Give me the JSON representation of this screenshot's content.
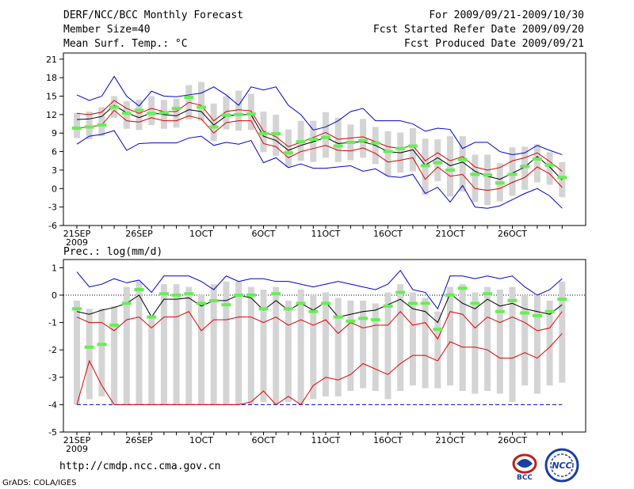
{
  "header": {
    "title": "DERF/NCC/BCC Monthly Forecast",
    "member_size": "Member Size=40",
    "variable": "Mean Surf. Temp.: °C",
    "period": "For 2009/09/21-2009/10/30",
    "started": "Fcst Started Refer Date 2009/09/20",
    "produced": "Fcst Produced Date 2009/09/21"
  },
  "footer": {
    "url": "http://cmdp.ncc.cma.gov.cn",
    "grads": "GrADS: COLA/IGES",
    "logo_left": "BCC",
    "logo_right": "NCC"
  },
  "colors": {
    "max_min": "#0000cc",
    "percentile": "#dd0000",
    "mean": "#000000",
    "median_mark": "#66ee55",
    "box": "#d4d4d4"
  },
  "chart_data": [
    {
      "type": "box-ensemble",
      "title": "Mean Surf. Temp.: °C",
      "x_labels": [
        "21SEP\n2009",
        "26SEP",
        "1OCT",
        "6OCT",
        "11OCT",
        "16OCT",
        "21OCT",
        "26OCT"
      ],
      "x_label_days": [
        0,
        5,
        10,
        15,
        20,
        25,
        30,
        35
      ],
      "ylim": [
        -6,
        22
      ],
      "yticks": [
        -6,
        -3,
        0,
        3,
        6,
        9,
        12,
        15,
        18,
        21
      ],
      "days": 40,
      "max": [
        15.2,
        14.3,
        15.0,
        18.2,
        15.0,
        13.4,
        15.8,
        15.0,
        14.9,
        15.2,
        15.5,
        16.5,
        15.2,
        13.5,
        16.5,
        16.0,
        16.5,
        13.5,
        12.0,
        9.5,
        10.0,
        11.0,
        12.5,
        13.0,
        11.0,
        11.0,
        11.0,
        10.5,
        9.3,
        9.8,
        9.6,
        6.5,
        7.5,
        7.5,
        6.0,
        5.5,
        5.8,
        7.0,
        6.2,
        5.5
      ],
      "p90": [
        12.2,
        12.0,
        12.4,
        14.3,
        13.0,
        12.2,
        13.0,
        12.5,
        12.5,
        14.0,
        13.5,
        11.0,
        12.5,
        12.8,
        12.6,
        9.3,
        8.4,
        6.8,
        7.5,
        8.3,
        9.1,
        8.0,
        8.2,
        8.4,
        7.6,
        6.8,
        6.5,
        7.0,
        4.5,
        5.8,
        4.5,
        5.2,
        3.5,
        3.0,
        3.4,
        4.5,
        5.0,
        5.8,
        4.4,
        2.8
      ],
      "mean": [
        11.2,
        11.3,
        11.7,
        13.5,
        12.3,
        11.5,
        12.3,
        12.0,
        11.8,
        12.8,
        12.5,
        10.3,
        11.8,
        12.0,
        12.0,
        8.5,
        7.8,
        6.2,
        7.0,
        7.6,
        8.3,
        7.3,
        7.5,
        7.6,
        7.0,
        6.0,
        5.8,
        6.3,
        3.8,
        5.0,
        3.7,
        4.3,
        2.8,
        2.0,
        1.5,
        2.5,
        3.5,
        5.2,
        3.5,
        1.4
      ],
      "p10": [
        9.8,
        10.0,
        10.3,
        12.7,
        11.0,
        10.8,
        11.5,
        11.0,
        11.0,
        11.8,
        11.3,
        9.0,
        10.7,
        11.0,
        11.0,
        7.3,
        6.8,
        5.0,
        6.0,
        6.5,
        7.0,
        6.2,
        6.1,
        6.6,
        5.7,
        4.3,
        4.6,
        5.0,
        1.5,
        3.5,
        2.0,
        2.3,
        0.0,
        -0.3,
        0.0,
        1.0,
        1.8,
        3.5,
        2.4,
        0.2
      ],
      "min": [
        7.2,
        8.5,
        8.8,
        9.4,
        6.2,
        7.3,
        7.4,
        7.4,
        7.4,
        8.2,
        8.5,
        7.0,
        7.5,
        7.2,
        7.8,
        4.2,
        5.0,
        3.4,
        4.0,
        3.3,
        3.3,
        3.5,
        3.7,
        2.8,
        3.2,
        2.0,
        1.8,
        2.3,
        -0.8,
        0.2,
        -2.2,
        0.5,
        -3.0,
        -3.2,
        -2.8,
        -1.8,
        -0.8,
        0.0,
        -1.2,
        -3.2
      ],
      "box_hi": [
        12.3,
        12.5,
        13.2,
        15.0,
        14.2,
        14.4,
        15.0,
        14.4,
        14.6,
        16.8,
        17.3,
        13.8,
        15.0,
        15.9,
        15.4,
        12.5,
        12.0,
        9.6,
        11.0,
        11.0,
        12.4,
        11.5,
        10.4,
        11.3,
        10.0,
        9.3,
        9.1,
        9.8,
        8.1,
        8.0,
        8.5,
        8.5,
        5.5,
        5.5,
        4.1,
        6.7,
        6.8,
        7.2,
        5.9,
        4.3
      ],
      "box_lo": [
        8.2,
        8.0,
        8.5,
        11.5,
        9.7,
        9.5,
        10.3,
        9.7,
        9.9,
        11.2,
        11.0,
        7.7,
        9.6,
        9.4,
        9.5,
        5.9,
        5.3,
        3.5,
        4.5,
        4.3,
        5.0,
        4.3,
        4.6,
        5.0,
        4.0,
        2.1,
        2.6,
        2.8,
        -1.0,
        1.2,
        -1.3,
        -0.5,
        -2.2,
        -2.7,
        -2.1,
        -1.2,
        -0.2,
        1.0,
        0.6,
        -1.4
      ],
      "median": [
        9.8,
        10.0,
        10.3,
        13.2,
        12.2,
        12.7,
        12.2,
        12.3,
        13.0,
        14.8,
        13.2,
        10.0,
        11.9,
        12.0,
        12.1,
        8.9,
        8.9,
        5.8,
        7.6,
        8.0,
        8.3,
        6.9,
        7.5,
        7.8,
        7.4,
        6.0,
        6.5,
        6.9,
        3.7,
        4.2,
        3.0,
        4.7,
        2.3,
        2.2,
        0.9,
        2.3,
        3.6,
        4.8,
        3.8,
        1.8
      ]
    },
    {
      "type": "box-ensemble",
      "title": "Prec.: log(mm/d)",
      "x_labels": [
        "21SEP\n2009",
        "26SEP",
        "1OCT",
        "6OCT",
        "11OCT",
        "16OCT",
        "21OCT",
        "26OCT"
      ],
      "x_label_days": [
        0,
        5,
        10,
        15,
        20,
        25,
        30,
        35
      ],
      "ylim": [
        -5,
        1.3
      ],
      "yticks": [
        -5,
        -4,
        -3,
        -2,
        -1,
        0,
        1
      ],
      "days": 40,
      "floor": -4,
      "max": [
        0.85,
        0.3,
        0.4,
        0.6,
        0.45,
        0.55,
        0.1,
        0.7,
        0.7,
        0.7,
        0.5,
        0.2,
        0.7,
        0.5,
        0.6,
        0.6,
        0.5,
        0.5,
        0.4,
        0.3,
        0.4,
        0.5,
        0.4,
        0.3,
        0.2,
        0.4,
        0.9,
        0.2,
        0.1,
        -0.5,
        0.7,
        0.7,
        0.6,
        0.7,
        0.6,
        0.7,
        0.3,
        0.0,
        0.2,
        0.6
      ],
      "mean": [
        -0.6,
        -0.7,
        -0.55,
        -0.45,
        -0.3,
        0.0,
        -0.8,
        -0.15,
        -0.15,
        -0.1,
        -0.4,
        -0.2,
        -0.2,
        0.0,
        -0.1,
        -0.55,
        -0.2,
        -0.55,
        -0.3,
        -0.55,
        -0.25,
        -0.8,
        -0.7,
        -0.6,
        -0.55,
        -0.35,
        -0.15,
        -0.5,
        -0.6,
        -1.0,
        0.05,
        -0.3,
        -0.5,
        -0.15,
        -0.4,
        -0.3,
        -0.5,
        -0.6,
        -0.7,
        -0.35
      ],
      "p90": [
        -0.8,
        -1.0,
        -1.0,
        -1.3,
        -0.9,
        -0.8,
        -1.2,
        -0.8,
        -0.8,
        -0.6,
        -1.3,
        -0.9,
        -0.9,
        -0.8,
        -0.8,
        -1.0,
        -0.8,
        -1.1,
        -0.9,
        -1.1,
        -0.9,
        -1.4,
        -1.0,
        -1.2,
        -1.1,
        -1.1,
        -0.6,
        -1.1,
        -1.0,
        -1.6,
        -0.6,
        -0.7,
        -1.2,
        -0.8,
        -1.0,
        -0.8,
        -1.0,
        -1.3,
        -1.2,
        -0.6
      ],
      "p10": [
        -4.0,
        -2.4,
        -3.3,
        -4.0,
        -4.0,
        -4.0,
        -4.0,
        -4.0,
        -4.0,
        -4.0,
        -4.0,
        -4.0,
        -4.0,
        -4.0,
        -3.9,
        -3.5,
        -4.0,
        -3.7,
        -4.0,
        -3.3,
        -3.0,
        -3.1,
        -2.9,
        -2.5,
        -2.7,
        -2.9,
        -2.5,
        -2.2,
        -2.2,
        -2.4,
        -1.7,
        -1.9,
        -1.9,
        -2.0,
        -2.3,
        -2.3,
        -2.1,
        -2.3,
        -1.9,
        -1.4
      ],
      "min": [
        -4,
        -4,
        -4,
        -4,
        -4,
        -4,
        -4,
        -4,
        -4,
        -4,
        -4,
        -4,
        -4,
        -4,
        -4,
        -4,
        -4,
        -4,
        -4,
        -4,
        -4,
        -4,
        -4,
        -4,
        -4,
        -4,
        -4,
        -4,
        -4,
        -4,
        -4,
        -4,
        -4,
        -4,
        -4,
        -4,
        -4,
        -4,
        -4,
        -4
      ],
      "box_hi": [
        -0.2,
        -0.5,
        -0.5,
        -0.4,
        0.3,
        0.5,
        -0.8,
        0.4,
        0.4,
        0.3,
        0.0,
        0.4,
        0.5,
        0.5,
        0.3,
        0.2,
        0.3,
        -0.2,
        0.2,
        0.0,
        0.1,
        -0.1,
        -0.2,
        -0.2,
        -0.3,
        0.1,
        0.4,
        0.1,
        -0.1,
        -0.6,
        0.3,
        0.4,
        0.1,
        0.3,
        0.2,
        0.3,
        0.0,
        0.0,
        -0.2,
        0.5
      ],
      "box_lo": [
        -4.0,
        -3.8,
        -3.7,
        -4.0,
        -4.0,
        -4.0,
        -4.0,
        -4.0,
        -4.0,
        -4.0,
        -4.0,
        -4.0,
        -4.0,
        -4.0,
        -4.0,
        -3.9,
        -4.0,
        -3.9,
        -4.0,
        -3.8,
        -3.7,
        -3.7,
        -3.5,
        -3.4,
        -3.5,
        -3.8,
        -3.5,
        -3.3,
        -3.4,
        -3.4,
        -3.3,
        -3.5,
        -3.6,
        -3.5,
        -3.6,
        -3.9,
        -3.3,
        -3.6,
        -3.3,
        -3.2
      ],
      "median": [
        -0.5,
        -1.9,
        -1.8,
        -1.1,
        -0.3,
        0.2,
        -0.8,
        0.05,
        0.0,
        0.05,
        -0.3,
        -0.2,
        -0.35,
        0.0,
        0.0,
        -0.5,
        0.05,
        -0.5,
        -0.3,
        -0.6,
        -0.3,
        -0.8,
        -0.95,
        -0.85,
        -0.9,
        -0.4,
        0.1,
        -0.3,
        -0.3,
        -1.25,
        0.0,
        0.25,
        -0.3,
        0.05,
        -0.6,
        -0.2,
        -0.65,
        -0.75,
        -0.6,
        -0.15
      ]
    }
  ],
  "lower_title": "Prec.: log(mm/d)"
}
